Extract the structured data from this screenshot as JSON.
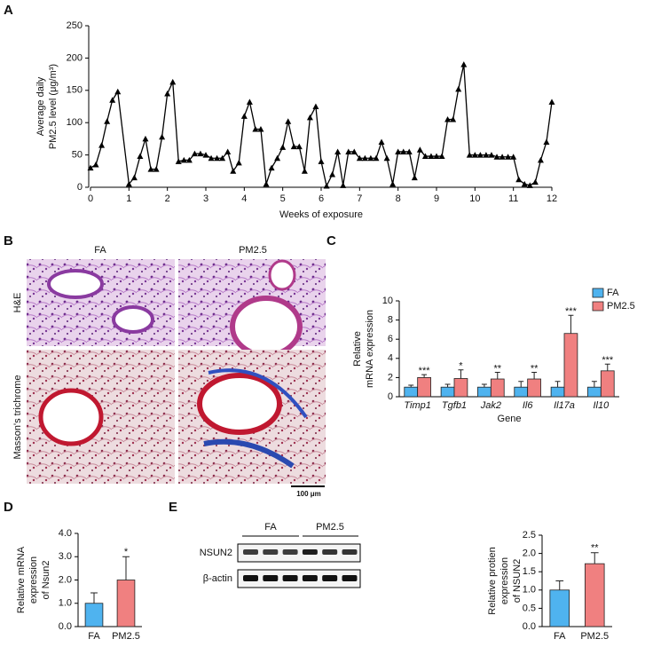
{
  "chart_data": [
    {
      "type": "line",
      "panel": "A",
      "xlabel": "Weeks of exposure",
      "ylabel": [
        "Average daily",
        "PM2.5 level (μg/m³)"
      ],
      "xlim": [
        0,
        12
      ],
      "xticks": [
        0,
        1,
        2,
        3,
        4,
        5,
        6,
        7,
        8,
        9,
        10,
        11,
        12
      ],
      "ylim": [
        0,
        250
      ],
      "yticks": [
        0,
        50,
        100,
        150,
        200,
        250
      ],
      "color": "#000000",
      "x": [
        0,
        0.14,
        0.29,
        0.43,
        0.57,
        0.71,
        1,
        1.14,
        1.29,
        1.43,
        1.57,
        1.71,
        1.86,
        2,
        2.14,
        2.29,
        2.43,
        2.57,
        2.71,
        2.86,
        3,
        3.14,
        3.29,
        3.43,
        3.57,
        3.71,
        3.86,
        4,
        4.14,
        4.29,
        4.43,
        4.57,
        4.71,
        4.86,
        5,
        5.14,
        5.29,
        5.43,
        5.57,
        5.71,
        5.86,
        6,
        6.14,
        6.29,
        6.43,
        6.57,
        6.71,
        6.86,
        7,
        7.14,
        7.29,
        7.43,
        7.57,
        7.71,
        7.86,
        8,
        8.14,
        8.29,
        8.43,
        8.57,
        8.71,
        8.86,
        9,
        9.14,
        9.29,
        9.43,
        9.57,
        9.71,
        9.86,
        10,
        10.14,
        10.29,
        10.43,
        10.57,
        10.71,
        10.86,
        11,
        11.14,
        11.29,
        11.43,
        11.57,
        11.71,
        11.86,
        12
      ],
      "values": [
        30,
        35,
        65,
        102,
        135,
        148,
        5,
        15,
        48,
        75,
        28,
        28,
        78,
        145,
        163,
        40,
        42,
        42,
        52,
        52,
        50,
        45,
        45,
        45,
        55,
        25,
        38,
        110,
        132,
        90,
        90,
        5,
        30,
        45,
        62,
        102,
        63,
        63,
        25,
        108,
        125,
        40,
        2,
        20,
        55,
        3,
        55,
        55,
        45,
        45,
        45,
        45,
        70,
        45,
        5,
        55,
        55,
        55,
        15,
        58,
        48,
        48,
        48,
        48,
        105,
        105,
        152,
        190,
        50,
        50,
        50,
        50,
        50,
        47,
        47,
        47,
        47,
        12,
        5,
        3,
        8,
        42,
        70,
        132
      ]
    },
    {
      "type": "bar",
      "panel": "C",
      "xlabel": "Gene",
      "ylabel": [
        "Relative",
        "mRNA expression"
      ],
      "categories": [
        "Timp1",
        "Tgfb1",
        "Jak2",
        "Il6",
        "Il17a",
        "Il10"
      ],
      "ylim": [
        0,
        10
      ],
      "yticks": [
        0,
        2,
        4,
        6,
        8,
        10
      ],
      "series": [
        {
          "name": "FA",
          "color": "#4fb3ef",
          "values": [
            1.0,
            1.0,
            1.0,
            1.0,
            1.0,
            1.0
          ],
          "errors": [
            0.2,
            0.3,
            0.3,
            0.6,
            0.6,
            0.6
          ]
        },
        {
          "name": "PM2.5",
          "color": "#f08080",
          "values": [
            2.0,
            1.9,
            1.85,
            1.85,
            6.6,
            2.7
          ],
          "errors": [
            0.3,
            0.9,
            0.7,
            0.7,
            1.9,
            0.7
          ],
          "significance": [
            "***",
            "*",
            "**",
            "**",
            "***",
            "***"
          ]
        }
      ]
    },
    {
      "type": "bar",
      "panel": "D",
      "ylabel": [
        "Relative mRNA",
        "expression",
        "of Nsun2"
      ],
      "categories": [
        "FA",
        "PM2.5"
      ],
      "values": [
        1.0,
        2.0
      ],
      "errors": [
        0.45,
        1.0
      ],
      "colors": [
        "#4fb3ef",
        "#f08080"
      ],
      "significance": "*",
      "ylim": [
        0,
        4
      ],
      "yticks": [
        {
          "value": 0,
          "label": "0.0"
        },
        {
          "value": 1,
          "label": "1.0"
        },
        {
          "value": 2,
          "label": "2.0"
        },
        {
          "value": 3,
          "label": "3.0"
        },
        {
          "value": 4,
          "label": "4.0"
        }
      ]
    },
    {
      "type": "bar",
      "panel": "E",
      "ylabel": [
        "Relative protien",
        "expression",
        "of NSUN2"
      ],
      "categories": [
        "FA",
        "PM2.5"
      ],
      "values": [
        1.0,
        1.72
      ],
      "errors": [
        0.25,
        0.3
      ],
      "colors": [
        "#4fb3ef",
        "#f08080"
      ],
      "significance": "**",
      "ylim": [
        0,
        2.5
      ],
      "yticks": [
        {
          "value": 0,
          "label": "0.0"
        },
        {
          "value": 0.5,
          "label": "0.5"
        },
        {
          "value": 1,
          "label": "1.0"
        },
        {
          "value": 1.5,
          "label": "1.5"
        },
        {
          "value": 2,
          "label": "2.0"
        },
        {
          "value": 2.5,
          "label": "2.5"
        }
      ]
    }
  ],
  "histology": {
    "panel": "B",
    "columns": [
      "FA",
      "PM2.5"
    ],
    "rows": [
      "H&E",
      "Masson's trichrome"
    ],
    "scale_bar": "100 μm"
  },
  "blot": {
    "groups": [
      "FA",
      "PM2.5"
    ],
    "rows": [
      "NSUN2",
      "β-actin"
    ]
  }
}
